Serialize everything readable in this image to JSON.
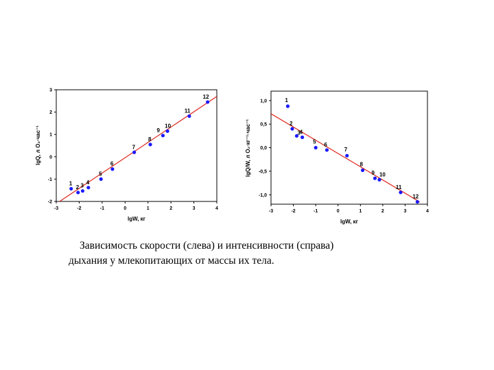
{
  "caption": {
    "line1": "Зависимость скорости (слева)  и интенсивности (справа)",
    "line2": "дыхания у млекопитающих от массы их тела."
  },
  "colors": {
    "points": "#1a1aff",
    "fit_line": "#e0251b",
    "axes": "#000000"
  },
  "chart_data": [
    {
      "type": "scatter",
      "xlabel": "lgW, кг",
      "ylabel": "lgQ, л O₂·час⁻¹",
      "xlim": [
        -3,
        4
      ],
      "ylim": [
        -2,
        3
      ],
      "x_ticks": [
        "-3",
        "-2",
        "-1",
        "0",
        "1",
        "2",
        "3",
        "4"
      ],
      "y_ticks": [
        "-2",
        "-1",
        "0",
        "1",
        "2",
        "3"
      ],
      "grid": false,
      "fit_line": {
        "x": [
          -3,
          4
        ],
        "y": [
          -2.1,
          2.7
        ]
      },
      "points": [
        {
          "label": "1",
          "x": -2.35,
          "y": -1.43
        },
        {
          "label": "2",
          "x": -2.05,
          "y": -1.6
        },
        {
          "label": "3",
          "x": -1.85,
          "y": -1.53
        },
        {
          "label": "4",
          "x": -1.6,
          "y": -1.38
        },
        {
          "label": "5",
          "x": -1.05,
          "y": -1.0
        },
        {
          "label": "6",
          "x": -0.55,
          "y": -0.55
        },
        {
          "label": "7",
          "x": 0.4,
          "y": 0.2
        },
        {
          "label": "8",
          "x": 1.1,
          "y": 0.55
        },
        {
          "label": "9",
          "x": 1.65,
          "y": 0.95
        },
        {
          "label": "10",
          "x": 1.85,
          "y": 1.15
        },
        {
          "label": "11",
          "x": 2.8,
          "y": 1.82
        },
        {
          "label": "12",
          "x": 3.6,
          "y": 2.45
        }
      ]
    },
    {
      "type": "scatter",
      "xlabel": "lgW, кг",
      "ylabel": "lgQ/W, л O₂·кг⁻¹·час⁻¹",
      "xlim": [
        -3,
        4
      ],
      "ylim": [
        -1.2,
        1.2
      ],
      "x_ticks": [
        "-3",
        "-2",
        "-1",
        "0",
        "1",
        "2",
        "3",
        "4"
      ],
      "y_ticks": [
        "-1,0",
        "-0,5",
        "0,0",
        "0,5",
        "1,0"
      ],
      "y_tick_values": [
        -1,
        -0.5,
        0,
        0.5,
        1
      ],
      "grid": false,
      "fit_line": {
        "x": [
          -3,
          3.65
        ],
        "y": [
          0.72,
          -1.15
        ]
      },
      "points": [
        {
          "label": "1",
          "x": -2.25,
          "y": 0.88
        },
        {
          "label": "2",
          "x": -2.05,
          "y": 0.4
        },
        {
          "label": "3",
          "x": -1.85,
          "y": 0.25
        },
        {
          "label": "4",
          "x": -1.6,
          "y": 0.22
        },
        {
          "label": "5",
          "x": -1.0,
          "y": 0.0
        },
        {
          "label": "6",
          "x": -0.5,
          "y": -0.05
        },
        {
          "label": "7",
          "x": 0.4,
          "y": -0.17
        },
        {
          "label": "8",
          "x": 1.1,
          "y": -0.48
        },
        {
          "label": "9",
          "x": 1.65,
          "y": -0.65
        },
        {
          "label": "10",
          "x": 1.85,
          "y": -0.68
        },
        {
          "label": "11",
          "x": 2.8,
          "y": -0.95
        },
        {
          "label": "12",
          "x": 3.55,
          "y": -1.15
        }
      ]
    }
  ]
}
